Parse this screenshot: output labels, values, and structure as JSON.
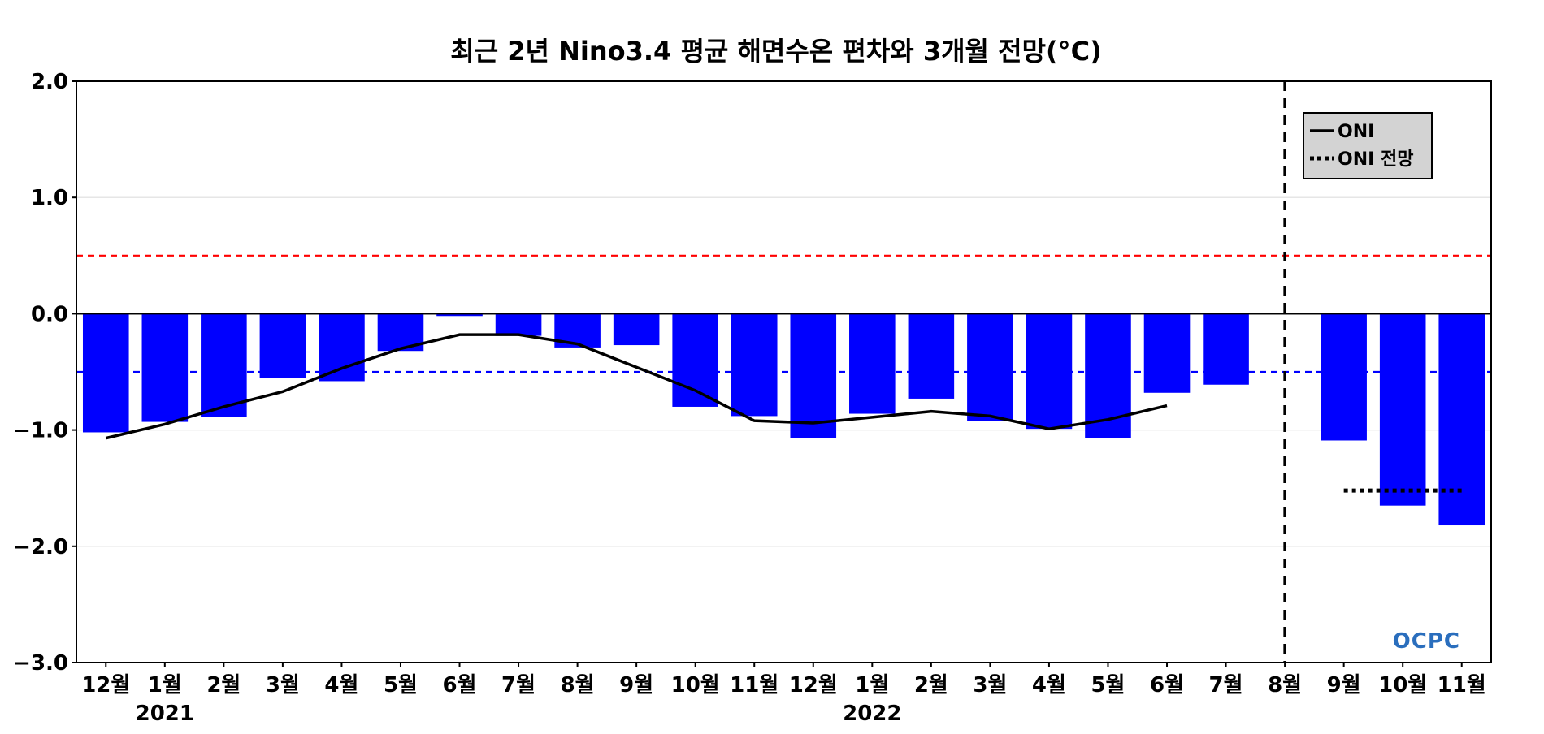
{
  "chart_data": {
    "type": "bar",
    "title": "최근 2년 Nino3.4 평균 해면수온 편차와 3개월 전망(°C)",
    "xlabel": "",
    "ylabel": "",
    "ylim": [
      -3.0,
      2.0
    ],
    "yticks": [
      2.0,
      1.0,
      0.0,
      -1.0,
      -2.0,
      -3.0
    ],
    "ytick_labels": [
      "2.0",
      "1.0",
      "0.0",
      "−1.0",
      "−2.0",
      "−3.0"
    ],
    "grid": true,
    "categories": [
      "12월",
      "1월",
      "2월",
      "3월",
      "4월",
      "5월",
      "6월",
      "7월",
      "8월",
      "9월",
      "10월",
      "11월",
      "12월",
      "1월",
      "2월",
      "3월",
      "4월",
      "5월",
      "6월",
      "7월",
      "8월",
      "9월",
      "10월",
      "11월"
    ],
    "year_labels": [
      {
        "label": "2021",
        "category_index": 1
      },
      {
        "label": "2022",
        "category_index": 13
      }
    ],
    "series": [
      {
        "type": "bar",
        "color": "#0000ff",
        "values": [
          -1.02,
          -0.93,
          -0.89,
          -0.55,
          -0.58,
          -0.32,
          -0.02,
          -0.19,
          -0.29,
          -0.27,
          -0.8,
          -0.88,
          -1.07,
          -0.86,
          -0.73,
          -0.92,
          -0.99,
          -1.07,
          -0.68,
          -0.61,
          null,
          -1.09,
          -1.65,
          -1.82
        ]
      },
      {
        "name": "ONI",
        "type": "line",
        "style": "solid",
        "color": "#000000",
        "values": [
          -1.07,
          -0.95,
          -0.8,
          -0.67,
          -0.47,
          -0.3,
          -0.18,
          -0.18,
          -0.26,
          -0.46,
          -0.66,
          -0.92,
          -0.94,
          -0.89,
          -0.84,
          -0.88,
          -0.99,
          -0.91,
          -0.79,
          null,
          null,
          null,
          null,
          null
        ]
      },
      {
        "name": "ONI 전망",
        "type": "line",
        "style": "dotted",
        "color": "#000000",
        "values": [
          null,
          null,
          null,
          null,
          null,
          null,
          null,
          null,
          null,
          null,
          null,
          null,
          null,
          null,
          null,
          null,
          null,
          null,
          null,
          null,
          null,
          -1.52,
          -1.52,
          -1.52
        ]
      }
    ],
    "reference_lines": [
      {
        "value": 0.5,
        "color": "#ff0000",
        "style": "dashed"
      },
      {
        "value": -0.5,
        "color": "#0000ff",
        "style": "dashed"
      },
      {
        "value": 0.0,
        "color": "#000000",
        "style": "solid"
      }
    ],
    "forecast_divider_category_index": 20,
    "legend_position": "top-right",
    "logo_text": "OCPC"
  }
}
